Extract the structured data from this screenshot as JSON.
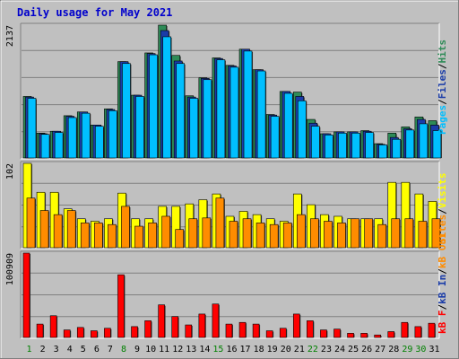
{
  "chart_data": {
    "type": "bar",
    "title": "Daily usage for May 2021",
    "categories": [
      "1",
      "2",
      "3",
      "4",
      "5",
      "6",
      "7",
      "8",
      "9",
      "10",
      "11",
      "12",
      "13",
      "14",
      "15",
      "16",
      "17",
      "18",
      "19",
      "20",
      "21",
      "22",
      "23",
      "24",
      "25",
      "26",
      "27",
      "28",
      "29",
      "30",
      "31"
    ],
    "weekend_days": [
      "1",
      "8",
      "15",
      "22",
      "29",
      "30"
    ],
    "top_panel": {
      "ymax_label": "2137",
      "ylim": [
        0,
        2137
      ],
      "series": [
        {
          "name": "Hits",
          "color": "#2e8b57",
          "values": [
            990,
            400,
            430,
            680,
            740,
            530,
            790,
            1550,
            1010,
            1690,
            2137,
            1650,
            1000,
            1290,
            1610,
            1490,
            1750,
            1420,
            700,
            1070,
            1060,
            620,
            390,
            420,
            420,
            440,
            230,
            400,
            500,
            660,
            600
          ]
        },
        {
          "name": "Files",
          "color": "#1a3ca8",
          "values": [
            980,
            390,
            430,
            670,
            740,
            530,
            780,
            1550,
            1010,
            1680,
            2050,
            1560,
            980,
            1280,
            1600,
            1480,
            1750,
            1420,
            690,
            1070,
            990,
            560,
            390,
            420,
            420,
            430,
            220,
            330,
            470,
            620,
            530
          ]
        },
        {
          "name": "Pages",
          "color": "#00bfff",
          "values": [
            960,
            380,
            410,
            650,
            720,
            510,
            760,
            1520,
            990,
            1660,
            1950,
            1520,
            960,
            1260,
            1580,
            1460,
            1720,
            1400,
            670,
            1040,
            920,
            510,
            370,
            400,
            400,
            410,
            210,
            300,
            450,
            550,
            440
          ]
        }
      ],
      "legend": [
        "Pages",
        "Files",
        "Hits"
      ]
    },
    "middle_panel": {
      "ymax_label": "102",
      "ylim": [
        0,
        102
      ],
      "series": [
        {
          "name": "Visits",
          "color": "#ffff00",
          "values": [
            102,
            67,
            67,
            47,
            35,
            32,
            35,
            66,
            35,
            35,
            50,
            50,
            53,
            58,
            65,
            38,
            44,
            40,
            35,
            32,
            65,
            52,
            40,
            38,
            35,
            35,
            35,
            79,
            79,
            65,
            56
          ]
        },
        {
          "name": "Sites",
          "color": "#ff8c00",
          "values": [
            60,
            45,
            40,
            45,
            30,
            30,
            28,
            50,
            26,
            30,
            38,
            22,
            35,
            36,
            60,
            32,
            35,
            30,
            28,
            30,
            40,
            35,
            32,
            30,
            35,
            35,
            28,
            35,
            35,
            32,
            35
          ]
        }
      ],
      "legend": [
        "Sites",
        "Visits"
      ]
    },
    "bottom_panel": {
      "ymax_label": "100909",
      "ylim": [
        0,
        100909
      ],
      "series": [
        {
          "name": "kB Out",
          "color": "#ff8c00",
          "values": []
        },
        {
          "name": "kB In",
          "color": "#1a3ca8",
          "values": []
        },
        {
          "name": "kB F",
          "color": "#ff0000",
          "values": [
            100909,
            16000,
            26000,
            9000,
            12000,
            8000,
            11000,
            75000,
            13000,
            20000,
            39000,
            25000,
            15000,
            28000,
            40000,
            16000,
            18000,
            16000,
            8000,
            11000,
            28000,
            20000,
            9000,
            10000,
            5000,
            5000,
            3000,
            7000,
            18000,
            13000,
            17000
          ]
        }
      ],
      "legend": [
        "kB F",
        "kB In",
        "kB Out"
      ]
    }
  }
}
